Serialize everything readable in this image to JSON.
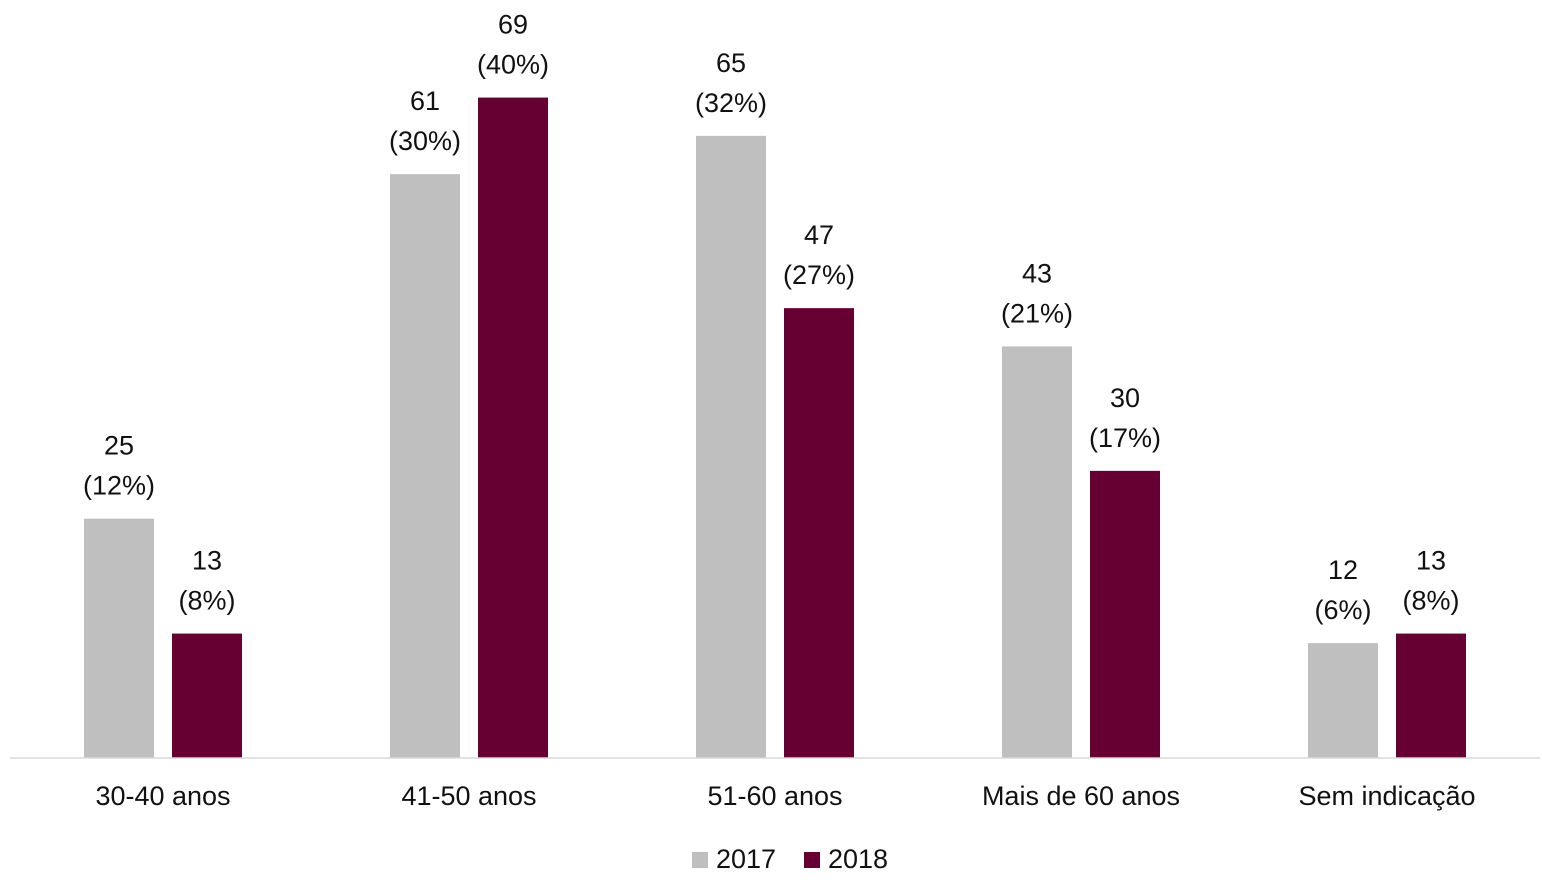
{
  "chart_data": {
    "type": "bar",
    "categories": [
      "30-40 anos",
      "41-50 anos",
      "51-60 anos",
      "Mais de 60 anos",
      "Sem indicação"
    ],
    "series": [
      {
        "name": "2017",
        "color": "#bfbfbf",
        "values": [
          25,
          61,
          65,
          43,
          12
        ],
        "value_labels": [
          "25 (12%)",
          "61 (30%)",
          "65 (32%)",
          "43 (21%)",
          "12 (6%)"
        ]
      },
      {
        "name": "2018",
        "color": "#660033",
        "values": [
          13,
          69,
          47,
          30,
          13
        ],
        "value_labels": [
          "13 (8%)",
          "69 (40%)",
          "47 (27%)",
          "30 (17%)",
          "13 (8%)"
        ]
      }
    ],
    "ylim": [
      0,
      70
    ],
    "legend": "bottom"
  }
}
